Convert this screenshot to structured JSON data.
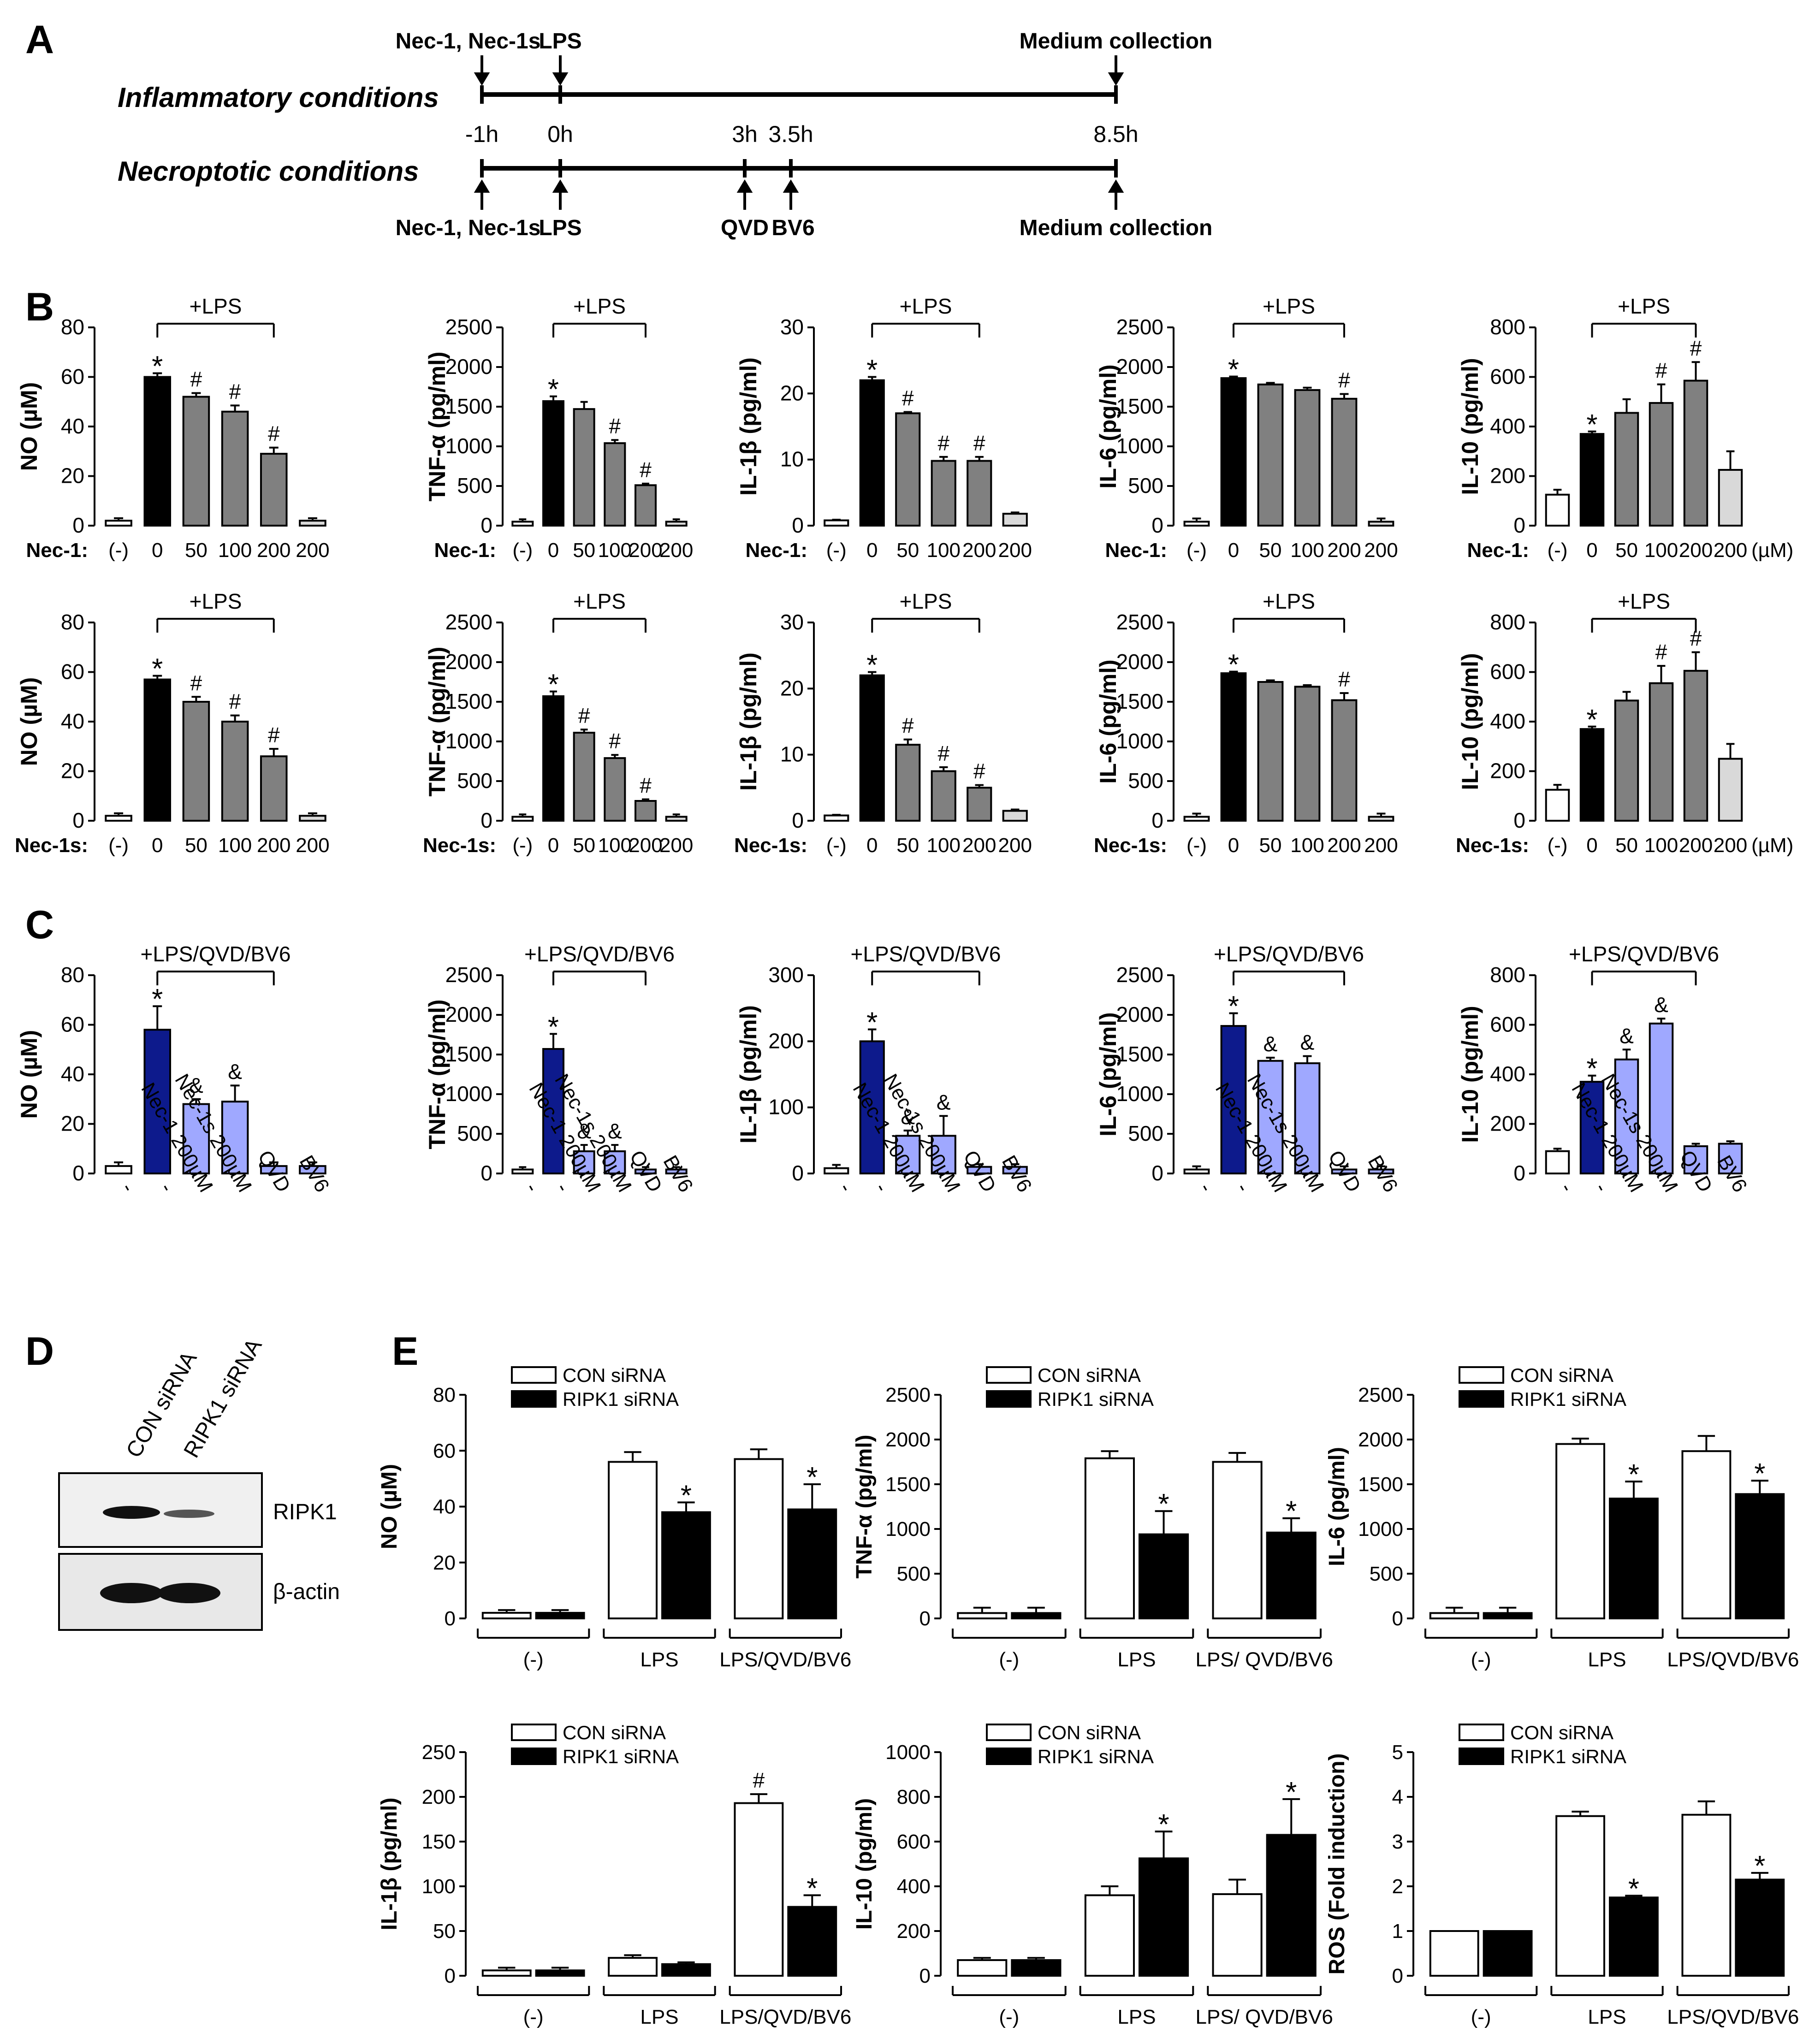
{
  "panel_labels": {
    "A": "A",
    "B": "B",
    "C": "C",
    "D": "D",
    "E": "E"
  },
  "timeline": {
    "inflam_label": "Inflammatory conditions",
    "necro_label": "Necroptotic conditions",
    "inflam_color": "#2f5a8e",
    "necro_color": "#9e2a2b",
    "top_labels": [
      "Nec-1, Nec-1s",
      "LPS",
      "Medium collection"
    ],
    "times": [
      "-1h",
      "0h",
      "3h",
      "3.5h",
      "8.5h"
    ],
    "bottom_labels": [
      "Nec-1, Nec-1s",
      "LPS",
      "QVD",
      "BV6",
      "Medium collection"
    ]
  },
  "colors": {
    "black": "#000000",
    "gray": "#808080",
    "lightgray": "#d9d9d9",
    "navy": "#0d1a8c",
    "periwinkle": "#9fa8ff",
    "white": "#ffffff"
  },
  "panel_B": {
    "lps_label": "+LPS",
    "nec1_label": "Nec-1:",
    "nec1s_label": "Nec-1s:",
    "x_labels": [
      "(-)",
      "0",
      "50",
      "100",
      "200",
      "200"
    ],
    "unit": "(µM)"
  },
  "panel_C": {
    "treat_label": "+LPS/QVD/BV6",
    "x_labels": [
      "-",
      "-",
      "Nec-1 200µM",
      "Nec-1s 200µM",
      "QVD",
      "BV6"
    ]
  },
  "panel_D": {
    "lanes": [
      "CON siRNA",
      "RIPK1 siRNA"
    ],
    "bands": [
      "RIPK1",
      "β-actin"
    ]
  },
  "panel_E": {
    "legend": [
      "CON siRNA",
      "RIPK1 siRNA"
    ],
    "groups": [
      "(-)",
      "LPS",
      "LPS/QVD/BV6"
    ],
    "groups_alt": [
      "(-)",
      "LPS",
      "LPS/ QVD/BV6"
    ]
  },
  "chart_data": [
    {
      "id": "B-NO-nec1",
      "type": "bar",
      "title": "",
      "ylabel": "NO (µM)",
      "ylim": [
        0,
        80
      ],
      "ticks": [
        0,
        20,
        40,
        60,
        80
      ],
      "categories": [
        "(-)",
        "0",
        "50",
        "100",
        "200",
        "200"
      ],
      "values": [
        2,
        60,
        52,
        46,
        29,
        2
      ],
      "errors": [
        1,
        1.5,
        1.5,
        2.5,
        2.5,
        1
      ],
      "annotations": [
        "",
        "*",
        "#",
        "#",
        "#",
        ""
      ],
      "colors": [
        "white",
        "black",
        "gray",
        "gray",
        "gray",
        "lightgray"
      ]
    },
    {
      "id": "B-TNF-nec1",
      "type": "bar",
      "title": "",
      "ylabel": "TNF-α (pg/ml)",
      "ylim": [
        0,
        2500
      ],
      "ticks": [
        0,
        500,
        1000,
        1500,
        2000,
        2500
      ],
      "categories": [
        "(-)",
        "0",
        "50",
        "100",
        "200",
        "200"
      ],
      "values": [
        50,
        1570,
        1470,
        1040,
        510,
        50
      ],
      "errors": [
        30,
        60,
        90,
        40,
        20,
        30
      ],
      "annotations": [
        "",
        "*",
        "",
        "#",
        "#",
        ""
      ],
      "colors": [
        "white",
        "black",
        "gray",
        "gray",
        "gray",
        "lightgray"
      ]
    },
    {
      "id": "B-IL1b-nec1",
      "type": "bar",
      "title": "",
      "ylabel": "IL-1β (pg/ml)",
      "ylim": [
        0,
        30
      ],
      "ticks": [
        0,
        10,
        20,
        30
      ],
      "categories": [
        "(-)",
        "0",
        "50",
        "100",
        "200",
        "200"
      ],
      "values": [
        0.8,
        22,
        17,
        9.8,
        9.8,
        1.8
      ],
      "errors": [
        0.1,
        0.5,
        0.2,
        0.6,
        0.6,
        0.2
      ],
      "annotations": [
        "",
        "*",
        "#",
        "#",
        "#",
        ""
      ],
      "colors": [
        "white",
        "black",
        "gray",
        "gray",
        "gray",
        "lightgray"
      ]
    },
    {
      "id": "B-IL6-nec1",
      "type": "bar",
      "title": "",
      "ylabel": "IL-6 (pg/ml)",
      "ylim": [
        0,
        2500
      ],
      "ticks": [
        0,
        500,
        1000,
        1500,
        2000,
        2500
      ],
      "categories": [
        "(-)",
        "0",
        "50",
        "100",
        "200",
        "200"
      ],
      "values": [
        50,
        1860,
        1780,
        1710,
        1600,
        50
      ],
      "errors": [
        40,
        20,
        20,
        30,
        60,
        40
      ],
      "annotations": [
        "",
        "*",
        "",
        "",
        "#",
        ""
      ],
      "colors": [
        "white",
        "black",
        "gray",
        "gray",
        "gray",
        "lightgray"
      ]
    },
    {
      "id": "B-IL10-nec1",
      "type": "bar",
      "title": "",
      "ylabel": "IL-10 (pg/ml)",
      "ylim": [
        0,
        800
      ],
      "ticks": [
        0,
        200,
        400,
        600,
        800
      ],
      "categories": [
        "(-)",
        "0",
        "50",
        "100",
        "200",
        "200"
      ],
      "values": [
        125,
        370,
        455,
        495,
        585,
        225
      ],
      "errors": [
        20,
        10,
        55,
        75,
        75,
        75
      ],
      "annotations": [
        "",
        "*",
        "",
        "#",
        "#",
        ""
      ],
      "colors": [
        "white",
        "black",
        "gray",
        "gray",
        "gray",
        "lightgray"
      ]
    },
    {
      "id": "B-NO-nec1s",
      "type": "bar",
      "title": "",
      "ylabel": "NO (µM)",
      "ylim": [
        0,
        80
      ],
      "ticks": [
        0,
        20,
        40,
        60,
        80
      ],
      "categories": [
        "(-)",
        "0",
        "50",
        "100",
        "200",
        "200"
      ],
      "values": [
        2,
        57,
        48,
        40,
        26,
        2
      ],
      "errors": [
        1,
        1.5,
        2,
        2.5,
        3,
        1
      ],
      "annotations": [
        "",
        "*",
        "#",
        "#",
        "#",
        ""
      ],
      "colors": [
        "white",
        "black",
        "gray",
        "gray",
        "gray",
        "lightgray"
      ]
    },
    {
      "id": "B-TNF-nec1s",
      "type": "bar",
      "title": "",
      "ylabel": "TNF-α (pg/ml)",
      "ylim": [
        0,
        2500
      ],
      "ticks": [
        0,
        500,
        1000,
        1500,
        2000,
        2500
      ],
      "categories": [
        "(-)",
        "0",
        "50",
        "100",
        "200",
        "200"
      ],
      "values": [
        50,
        1570,
        1110,
        790,
        250,
        50
      ],
      "errors": [
        30,
        60,
        40,
        40,
        20,
        30
      ],
      "annotations": [
        "",
        "*",
        "#",
        "#",
        "#",
        ""
      ],
      "colors": [
        "white",
        "black",
        "gray",
        "gray",
        "gray",
        "lightgray"
      ]
    },
    {
      "id": "B-IL1b-nec1s",
      "type": "bar",
      "title": "",
      "ylabel": "IL-1β (pg/ml)",
      "ylim": [
        0,
        30
      ],
      "ticks": [
        0,
        10,
        20,
        30
      ],
      "categories": [
        "(-)",
        "0",
        "50",
        "100",
        "200",
        "200"
      ],
      "values": [
        0.8,
        22,
        11.5,
        7.5,
        5,
        1.5
      ],
      "errors": [
        0.1,
        0.5,
        0.8,
        0.6,
        0.4,
        0.2
      ],
      "annotations": [
        "",
        "*",
        "#",
        "#",
        "#",
        ""
      ],
      "colors": [
        "white",
        "black",
        "gray",
        "gray",
        "gray",
        "lightgray"
      ]
    },
    {
      "id": "B-IL6-nec1s",
      "type": "bar",
      "title": "",
      "ylabel": "IL-6 (pg/ml)",
      "ylim": [
        0,
        2500
      ],
      "ticks": [
        0,
        500,
        1000,
        1500,
        2000,
        2500
      ],
      "categories": [
        "(-)",
        "0",
        "50",
        "100",
        "200",
        "200"
      ],
      "values": [
        50,
        1860,
        1750,
        1690,
        1520,
        50
      ],
      "errors": [
        40,
        20,
        20,
        20,
        90,
        40
      ],
      "annotations": [
        "",
        "*",
        "",
        "",
        "#",
        ""
      ],
      "colors": [
        "white",
        "black",
        "gray",
        "gray",
        "gray",
        "lightgray"
      ]
    },
    {
      "id": "B-IL10-nec1s",
      "type": "bar",
      "title": "",
      "ylabel": "IL-10 (pg/ml)",
      "ylim": [
        0,
        800
      ],
      "ticks": [
        0,
        200,
        400,
        600,
        800
      ],
      "categories": [
        "(-)",
        "0",
        "50",
        "100",
        "200",
        "200"
      ],
      "values": [
        125,
        370,
        485,
        555,
        605,
        250
      ],
      "errors": [
        20,
        10,
        35,
        70,
        75,
        60
      ],
      "annotations": [
        "",
        "*",
        "",
        "#",
        "#",
        ""
      ],
      "colors": [
        "white",
        "black",
        "gray",
        "gray",
        "gray",
        "lightgray"
      ]
    },
    {
      "id": "C-NO",
      "type": "bar",
      "title": "",
      "ylabel": "NO (µM)",
      "ylim": [
        0,
        80
      ],
      "ticks": [
        0,
        20,
        40,
        60,
        80
      ],
      "categories": [
        "-",
        "-",
        "Nec-1 200µM",
        "Nec-1s 200µM",
        "QVD",
        "BV6"
      ],
      "values": [
        3,
        58,
        28,
        29,
        3,
        3
      ],
      "errors": [
        1.5,
        9.5,
        2,
        6.5,
        1.5,
        1.5
      ],
      "annotations": [
        "",
        "*",
        "&",
        "&",
        "",
        ""
      ],
      "colors": [
        "white",
        "navy",
        "periwinkle",
        "periwinkle",
        "periwinkle",
        "periwinkle"
      ]
    },
    {
      "id": "C-TNF",
      "type": "bar",
      "title": "",
      "ylabel": "TNF-α (pg/ml)",
      "ylim": [
        0,
        2500
      ],
      "ticks": [
        0,
        500,
        1000,
        1500,
        2000,
        2500
      ],
      "categories": [
        "-",
        "-",
        "Nec-1 200µM",
        "Nec-1s 200µM",
        "QVD",
        "BV6"
      ],
      "values": [
        50,
        1570,
        280,
        280,
        50,
        50
      ],
      "errors": [
        30,
        190,
        80,
        80,
        30,
        30
      ],
      "annotations": [
        "",
        "*",
        "&",
        "&",
        "",
        ""
      ],
      "colors": [
        "white",
        "navy",
        "periwinkle",
        "periwinkle",
        "periwinkle",
        "periwinkle"
      ]
    },
    {
      "id": "C-IL1b",
      "type": "bar",
      "title": "",
      "ylabel": "IL-1β (pg/ml)",
      "ylim": [
        0,
        300
      ],
      "ticks": [
        0,
        100,
        200,
        300
      ],
      "categories": [
        "-",
        "-",
        "Nec-1 200µM",
        "Nec-1s 200µM",
        "QVD",
        "BV6"
      ],
      "values": [
        8,
        200,
        57,
        57,
        10,
        10
      ],
      "errors": [
        5,
        18,
        8,
        30,
        4,
        4
      ],
      "annotations": [
        "",
        "*",
        "&",
        "&",
        "",
        ""
      ],
      "colors": [
        "white",
        "navy",
        "periwinkle",
        "periwinkle",
        "periwinkle",
        "periwinkle"
      ]
    },
    {
      "id": "C-IL6",
      "type": "bar",
      "title": "",
      "ylabel": "IL-6 (pg/ml)",
      "ylim": [
        0,
        2500
      ],
      "ticks": [
        0,
        500,
        1000,
        1500,
        2000,
        2500
      ],
      "categories": [
        "-",
        "-",
        "Nec-1 200µM",
        "Nec-1s 200µM",
        "QVD",
        "BV6"
      ],
      "values": [
        50,
        1860,
        1420,
        1390,
        50,
        50
      ],
      "errors": [
        40,
        160,
        40,
        90,
        40,
        40
      ],
      "annotations": [
        "",
        "*",
        "&",
        "&",
        "",
        ""
      ],
      "colors": [
        "white",
        "navy",
        "periwinkle",
        "periwinkle",
        "periwinkle",
        "periwinkle"
      ]
    },
    {
      "id": "C-IL10",
      "type": "bar",
      "title": "",
      "ylabel": "IL-10 (pg/ml)",
      "ylim": [
        0,
        800
      ],
      "ticks": [
        0,
        200,
        400,
        600,
        800
      ],
      "categories": [
        "-",
        "-",
        "Nec-1 200µM",
        "Nec-1s 200µM",
        "QVD",
        "BV6"
      ],
      "values": [
        90,
        370,
        460,
        605,
        110,
        120
      ],
      "errors": [
        10,
        25,
        40,
        20,
        10,
        10
      ],
      "annotations": [
        "",
        "*",
        "&",
        "&",
        "",
        ""
      ],
      "colors": [
        "white",
        "navy",
        "periwinkle",
        "periwinkle",
        "periwinkle",
        "periwinkle"
      ]
    },
    {
      "id": "E-NO",
      "type": "bar",
      "title": "",
      "ylabel": "NO (µM)",
      "ylim": [
        0,
        80
      ],
      "ticks": [
        0,
        20,
        40,
        60,
        80
      ],
      "groups": [
        "(-)",
        "LPS",
        "LPS/QVD/BV6"
      ],
      "series": [
        {
          "name": "CON siRNA",
          "values": [
            2,
            56,
            57
          ],
          "errors": [
            1,
            3.5,
            3.5
          ],
          "annotations": [
            "",
            "",
            ""
          ]
        },
        {
          "name": "RIPK1 siRNA",
          "values": [
            2,
            38,
            39
          ],
          "errors": [
            1,
            3.5,
            9
          ],
          "annotations": [
            "",
            "*",
            "*"
          ]
        }
      ]
    },
    {
      "id": "E-TNF",
      "type": "bar",
      "title": "",
      "ylabel": "TNF-α (pg/ml)",
      "ylim": [
        0,
        2500
      ],
      "ticks": [
        0,
        500,
        1000,
        1500,
        2000,
        2500
      ],
      "groups": [
        "(-)",
        "LPS",
        "LPS/ QVD/BV6"
      ],
      "series": [
        {
          "name": "CON siRNA",
          "values": [
            60,
            1790,
            1750
          ],
          "errors": [
            60,
            80,
            100
          ],
          "annotations": [
            "",
            "",
            ""
          ]
        },
        {
          "name": "RIPK1 siRNA",
          "values": [
            60,
            940,
            960
          ],
          "errors": [
            60,
            260,
            160
          ],
          "annotations": [
            "",
            "*",
            "*"
          ]
        }
      ]
    },
    {
      "id": "E-IL6",
      "type": "bar",
      "title": "",
      "ylabel": "IL-6 (pg/ml)",
      "ylim": [
        0,
        2500
      ],
      "ticks": [
        0,
        500,
        1000,
        1500,
        2000,
        2500
      ],
      "groups": [
        "(-)",
        "LPS",
        "LPS/QVD/BV6"
      ],
      "series": [
        {
          "name": "CON siRNA",
          "values": [
            60,
            1950,
            1870
          ],
          "errors": [
            60,
            60,
            170
          ],
          "annotations": [
            "",
            "",
            ""
          ]
        },
        {
          "name": "RIPK1 siRNA",
          "values": [
            60,
            1340,
            1390
          ],
          "errors": [
            60,
            190,
            150
          ],
          "annotations": [
            "",
            "*",
            "*"
          ]
        }
      ]
    },
    {
      "id": "E-IL1b",
      "type": "bar",
      "title": "",
      "ylabel": "IL-1β (pg/ml)",
      "ylim": [
        0,
        250
      ],
      "ticks": [
        0,
        50,
        100,
        150,
        200,
        250
      ],
      "groups": [
        "(-)",
        "LPS",
        "LPS/QVD/BV6"
      ],
      "series": [
        {
          "name": "CON siRNA",
          "values": [
            6,
            20,
            193
          ],
          "errors": [
            3,
            3,
            10
          ],
          "annotations": [
            "",
            "",
            "#"
          ]
        },
        {
          "name": "RIPK1 siRNA",
          "values": [
            6,
            13,
            77
          ],
          "errors": [
            3,
            2,
            13
          ],
          "annotations": [
            "",
            "",
            "*"
          ]
        }
      ]
    },
    {
      "id": "E-IL10",
      "type": "bar",
      "title": "",
      "ylabel": "IL-10 (pg/ml)",
      "ylim": [
        0,
        1000
      ],
      "ticks": [
        0,
        200,
        400,
        600,
        800,
        1000
      ],
      "groups": [
        "(-)",
        "LPS",
        "LPS/ QVD/BV6"
      ],
      "series": [
        {
          "name": "CON siRNA",
          "values": [
            70,
            360,
            365
          ],
          "errors": [
            10,
            40,
            65
          ],
          "annotations": [
            "",
            "",
            ""
          ]
        },
        {
          "name": "RIPK1 siRNA",
          "values": [
            70,
            525,
            630
          ],
          "errors": [
            10,
            120,
            160
          ],
          "annotations": [
            "",
            "*",
            "*"
          ]
        }
      ]
    },
    {
      "id": "E-ROS",
      "type": "bar",
      "title": "",
      "ylabel": "ROS (Fold induction)",
      "ylim": [
        0,
        5
      ],
      "ticks": [
        0,
        1,
        2,
        3,
        4,
        5
      ],
      "groups": [
        "(-)",
        "LPS",
        "LPS/QVD/BV6"
      ],
      "series": [
        {
          "name": "CON siRNA",
          "values": [
            1,
            3.57,
            3.6
          ],
          "errors": [
            0,
            0.1,
            0.3
          ],
          "annotations": [
            "",
            "",
            ""
          ]
        },
        {
          "name": "RIPK1 siRNA",
          "values": [
            1,
            1.75,
            2.15
          ],
          "errors": [
            0,
            0.04,
            0.15
          ],
          "annotations": [
            "",
            "*",
            "*"
          ]
        }
      ]
    }
  ]
}
